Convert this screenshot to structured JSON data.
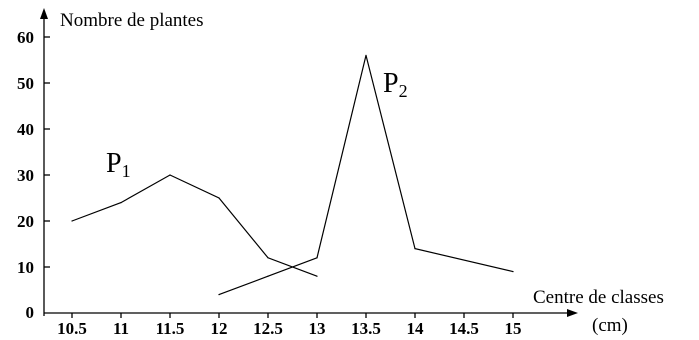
{
  "chart_data": {
    "type": "line",
    "ylabel": "Nombre de plantes",
    "xlabel_line1": "Centre de classes",
    "xlabel_line2": "(cm)",
    "x_ticks": [
      "10.5",
      "11",
      "11.5",
      "12",
      "12.5",
      "13",
      "13.5",
      "14",
      "14.5",
      "15"
    ],
    "y_ticks": [
      "0",
      "10",
      "20",
      "30",
      "40",
      "50",
      "60"
    ],
    "xlim": [
      10.0,
      15.6
    ],
    "ylim": [
      0,
      62
    ],
    "grid": false,
    "series": [
      {
        "name": "P",
        "subscript": "1",
        "x": [
          10.5,
          11,
          11.5,
          12,
          12.5,
          13
        ],
        "y": [
          20,
          24,
          30,
          25,
          12,
          8
        ]
      },
      {
        "name": "P",
        "subscript": "2",
        "x": [
          12,
          12.5,
          13,
          13.5,
          14,
          15
        ],
        "y": [
          4,
          8,
          12,
          56,
          14,
          9
        ]
      }
    ]
  }
}
